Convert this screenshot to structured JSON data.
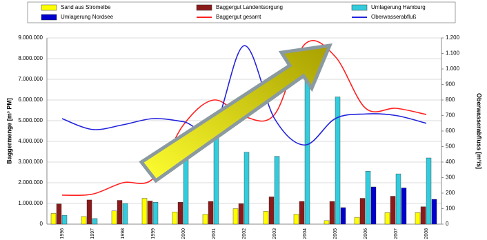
{
  "chart_data": {
    "type": "bar",
    "categories": [
      "1996",
      "1997",
      "1998",
      "1999",
      "2000",
      "2001",
      "2002",
      "2003",
      "2004",
      "2005",
      "2006",
      "2007",
      "2008"
    ],
    "y_label": "Baggermenge [m³ PM]",
    "y2_label": "Oberwasserabfluss [m³/s]",
    "ylim": [
      0,
      9000000
    ],
    "yticks": [
      0,
      {
        "value": 1000000,
        "label": "1.000.000"
      },
      {
        "value": 2000000,
        "label": "2.000.000"
      },
      {
        "value": 3000000,
        "label": "3.000.000"
      },
      {
        "value": 4000000,
        "label": "4.000.000"
      },
      {
        "value": 5000000,
        "label": "5.000.000"
      },
      {
        "value": 6000000,
        "label": "6.000.000"
      },
      {
        "value": 7000000,
        "label": "7.000.000"
      },
      {
        "value": 8000000,
        "label": "8.000.000"
      },
      {
        "value": 9000000,
        "label": "9.000.000"
      }
    ],
    "y2lim": [
      0,
      1200
    ],
    "y2ticks": [
      0,
      100,
      200,
      300,
      400,
      500,
      600,
      700,
      800,
      900,
      {
        "value": 1000,
        "label": "1.000"
      },
      {
        "value": 1100,
        "label": "1.100"
      },
      {
        "value": 1200,
        "label": "1.200"
      }
    ],
    "grid": true,
    "series": [
      {
        "name": "Sand aus Stromelbe",
        "type": "bar",
        "color": "#ffff00",
        "values": [
          520000,
          370000,
          640000,
          1250000,
          590000,
          480000,
          750000,
          620000,
          480000,
          170000,
          330000,
          560000,
          560000
        ]
      },
      {
        "name": "Baggergut Landentsorgung",
        "type": "bar",
        "color": "#8b1a1a",
        "values": [
          980000,
          1170000,
          1150000,
          1120000,
          1060000,
          1100000,
          990000,
          1320000,
          1100000,
          1100000,
          1250000,
          1350000,
          840000
        ]
      },
      {
        "name": "Umlagerung Hamburg",
        "type": "bar",
        "color": "#33ccdd",
        "values": [
          430000,
          270000,
          1000000,
          1060000,
          3150000,
          4300000,
          3480000,
          3280000,
          7100000,
          6150000,
          2560000,
          2430000,
          3200000
        ]
      },
      {
        "name": "Umlagerung Nordsee",
        "type": "bar",
        "color": "#0000cc",
        "values": [
          0,
          0,
          0,
          0,
          0,
          0,
          0,
          0,
          0,
          800000,
          1800000,
          1750000,
          1200000
        ]
      },
      {
        "name": "Baggergut gesamt",
        "type": "line",
        "color": "#ff2020",
        "values": [
          1400000,
          1450000,
          2000000,
          2200000,
          4800000,
          6000000,
          5200000,
          5300000,
          8700000,
          8100000,
          5600000,
          5600000,
          5300000
        ]
      },
      {
        "name": "Oberwasserabfluß",
        "type": "line",
        "axis": "y2",
        "color": "#2222dd",
        "values": [
          680,
          610,
          640,
          680,
          660,
          620,
          1150,
          680,
          510,
          680,
          710,
          700,
          650
        ]
      }
    ]
  }
}
